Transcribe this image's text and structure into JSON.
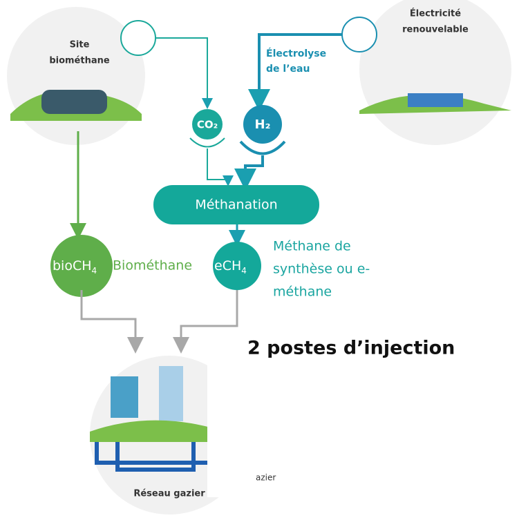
{
  "site": {
    "lines": [
      "Site",
      "biométhane"
    ]
  },
  "electricity": {
    "lines": [
      "Électricité",
      "renouvelable"
    ]
  },
  "electrolysis": {
    "lines": [
      "Électrolyse",
      "de l’eau"
    ]
  },
  "co2": "CO₂",
  "h2": "H₂",
  "methanation": "Méthanation",
  "biomethane": {
    "symbol": "bioCH",
    "sub": "4",
    "label": "Biométhane"
  },
  "emethane": {
    "symbol": "eCH",
    "sub": "4",
    "lines": [
      "Méthane de",
      "synthèse ou e-",
      "méthane"
    ]
  },
  "injection": "2 postes d’injection",
  "network": {
    "label": "Réseau gazier",
    "fragment": "azier"
  }
}
